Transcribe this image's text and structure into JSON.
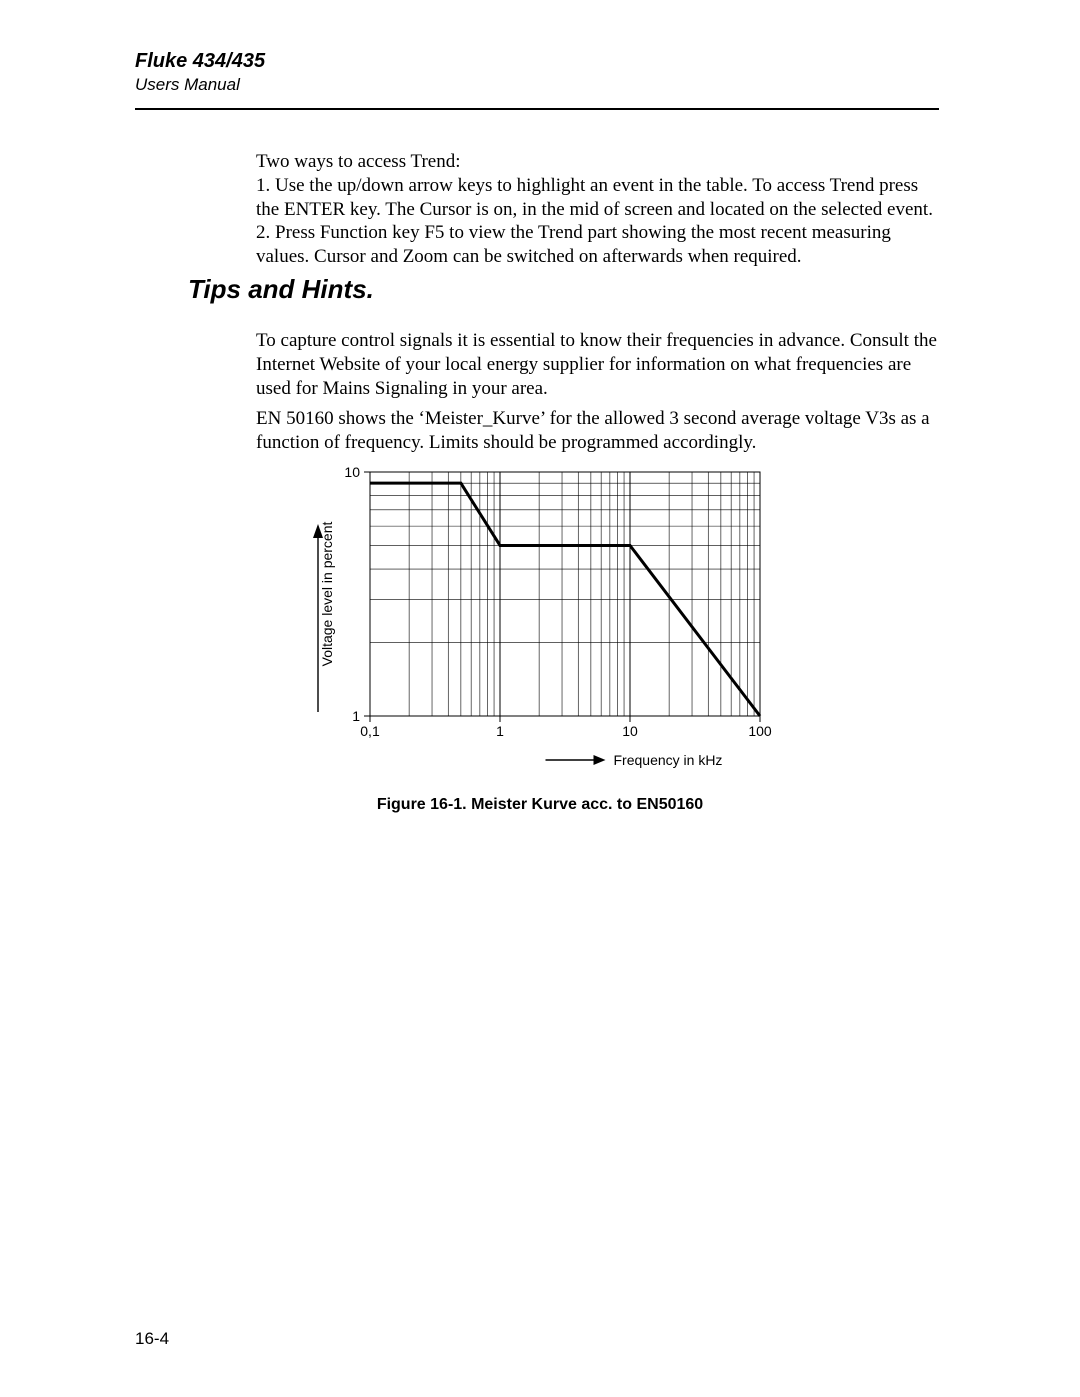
{
  "header": {
    "title": "Fluke 434/435",
    "subtitle": "Users Manual"
  },
  "intro": {
    "p1": "Two ways to access Trend:",
    "p2": "1. Use the up/down arrow keys to highlight an event in the table. To access Trend press the ENTER key. The Cursor is on, in the mid of screen and located on the selected event.",
    "p3": "2. Press Function key F5 to view the Trend part showing the most recent measuring values. Cursor and Zoom can be switched on afterwards when required."
  },
  "section_title": "Tips and Hints.",
  "tips": {
    "p1": "To capture control signals it is essential to know their frequencies in advance. Consult the Internet Website of your local energy supplier for information on what frequencies are used for Mains Signaling in your area.",
    "p2": "EN 50160 shows the ‘Meister_Kurve’ for the allowed 3 second average voltage V3s as a function of frequency. Limits should be programmed accordingly."
  },
  "chart": {
    "type": "line_loglog",
    "y_axis_label": "Voltage level in percent",
    "x_axis_label": "Frequency in kHz",
    "x_ticks": [
      "0,1",
      "1",
      "10",
      "100"
    ],
    "y_ticks": [
      "1",
      "10"
    ],
    "x_range_log10": [
      -1,
      2
    ],
    "y_range_log10": [
      0,
      1
    ],
    "grid_color": "#000000",
    "background_color": "#ffffff",
    "line_color": "#000000",
    "line_width": 3,
    "line_points_kHz_pct": [
      [
        0.1,
        9.0
      ],
      [
        0.5,
        9.0
      ],
      [
        1.0,
        5.0
      ],
      [
        10.0,
        5.0
      ],
      [
        100.0,
        1.0
      ]
    ],
    "caption": "Figure 16-1. Meister Kurve acc. to EN50160"
  },
  "page_number": "16-4"
}
